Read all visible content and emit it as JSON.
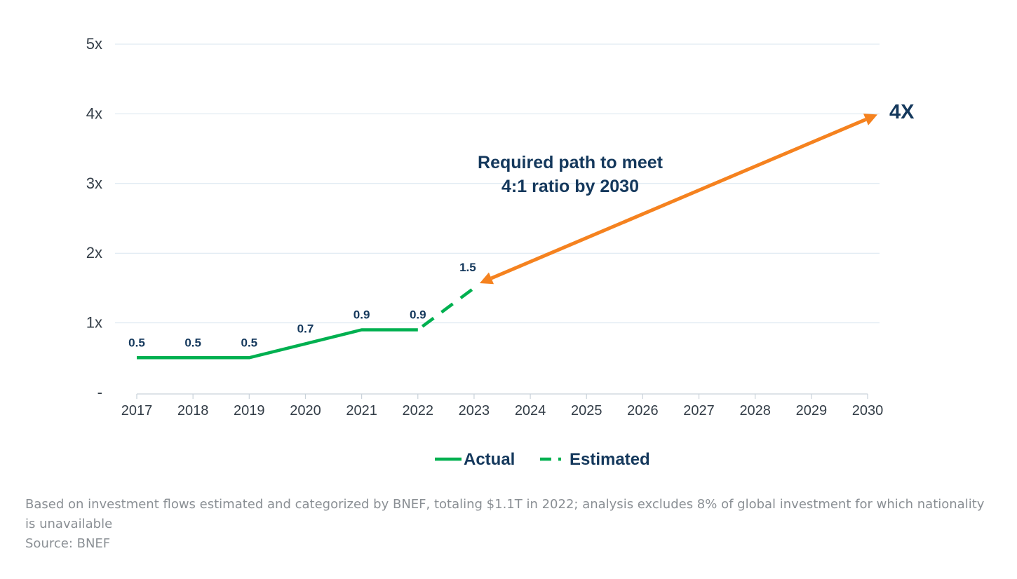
{
  "chart_data": {
    "type": "line",
    "x": [
      "2017",
      "2018",
      "2019",
      "2020",
      "2021",
      "2022",
      "2023",
      "2024",
      "2025",
      "2026",
      "2027",
      "2028",
      "2029",
      "2030"
    ],
    "y_ticks": [
      "-",
      "1x",
      "2x",
      "3x",
      "4x",
      "5x"
    ],
    "ylim": [
      0,
      5
    ],
    "grid": true,
    "series": [
      {
        "name": "Actual",
        "style": "solid",
        "color": "#00b050",
        "points": [
          {
            "x": 2017,
            "y": 0.5,
            "label": "0.5"
          },
          {
            "x": 2018,
            "y": 0.5,
            "label": "0.5"
          },
          {
            "x": 2019,
            "y": 0.5,
            "label": "0.5"
          },
          {
            "x": 2020,
            "y": 0.7,
            "label": "0.7"
          },
          {
            "x": 2021,
            "y": 0.9,
            "label": "0.9"
          },
          {
            "x": 2022,
            "y": 0.9,
            "label": "0.9"
          }
        ]
      },
      {
        "name": "Estimated",
        "style": "dashed",
        "color": "#00b050",
        "points": [
          {
            "x": 2022,
            "y": 0.9
          },
          {
            "x": 2023,
            "y": 1.5,
            "label": "1.5"
          }
        ]
      }
    ],
    "annotation": {
      "lines": [
        "Required path to meet",
        "4:1 ratio by 2030"
      ],
      "target_label": "4X",
      "color": "#f5821f",
      "text_color": "#14385c",
      "from": {
        "x": 2023,
        "y": 1.65
      },
      "to": {
        "x": 2030.2,
        "y": 3.97
      }
    },
    "legend": {
      "placement": "bottom",
      "items": [
        "Actual",
        "Estimated"
      ]
    }
  },
  "footnote": {
    "text": "Based on investment flows estimated and categorized by BNEF, totaling $1.1T in 2022; analysis excludes 8% of global investment for which nationality is unavailable",
    "source": "Source: BNEF"
  }
}
